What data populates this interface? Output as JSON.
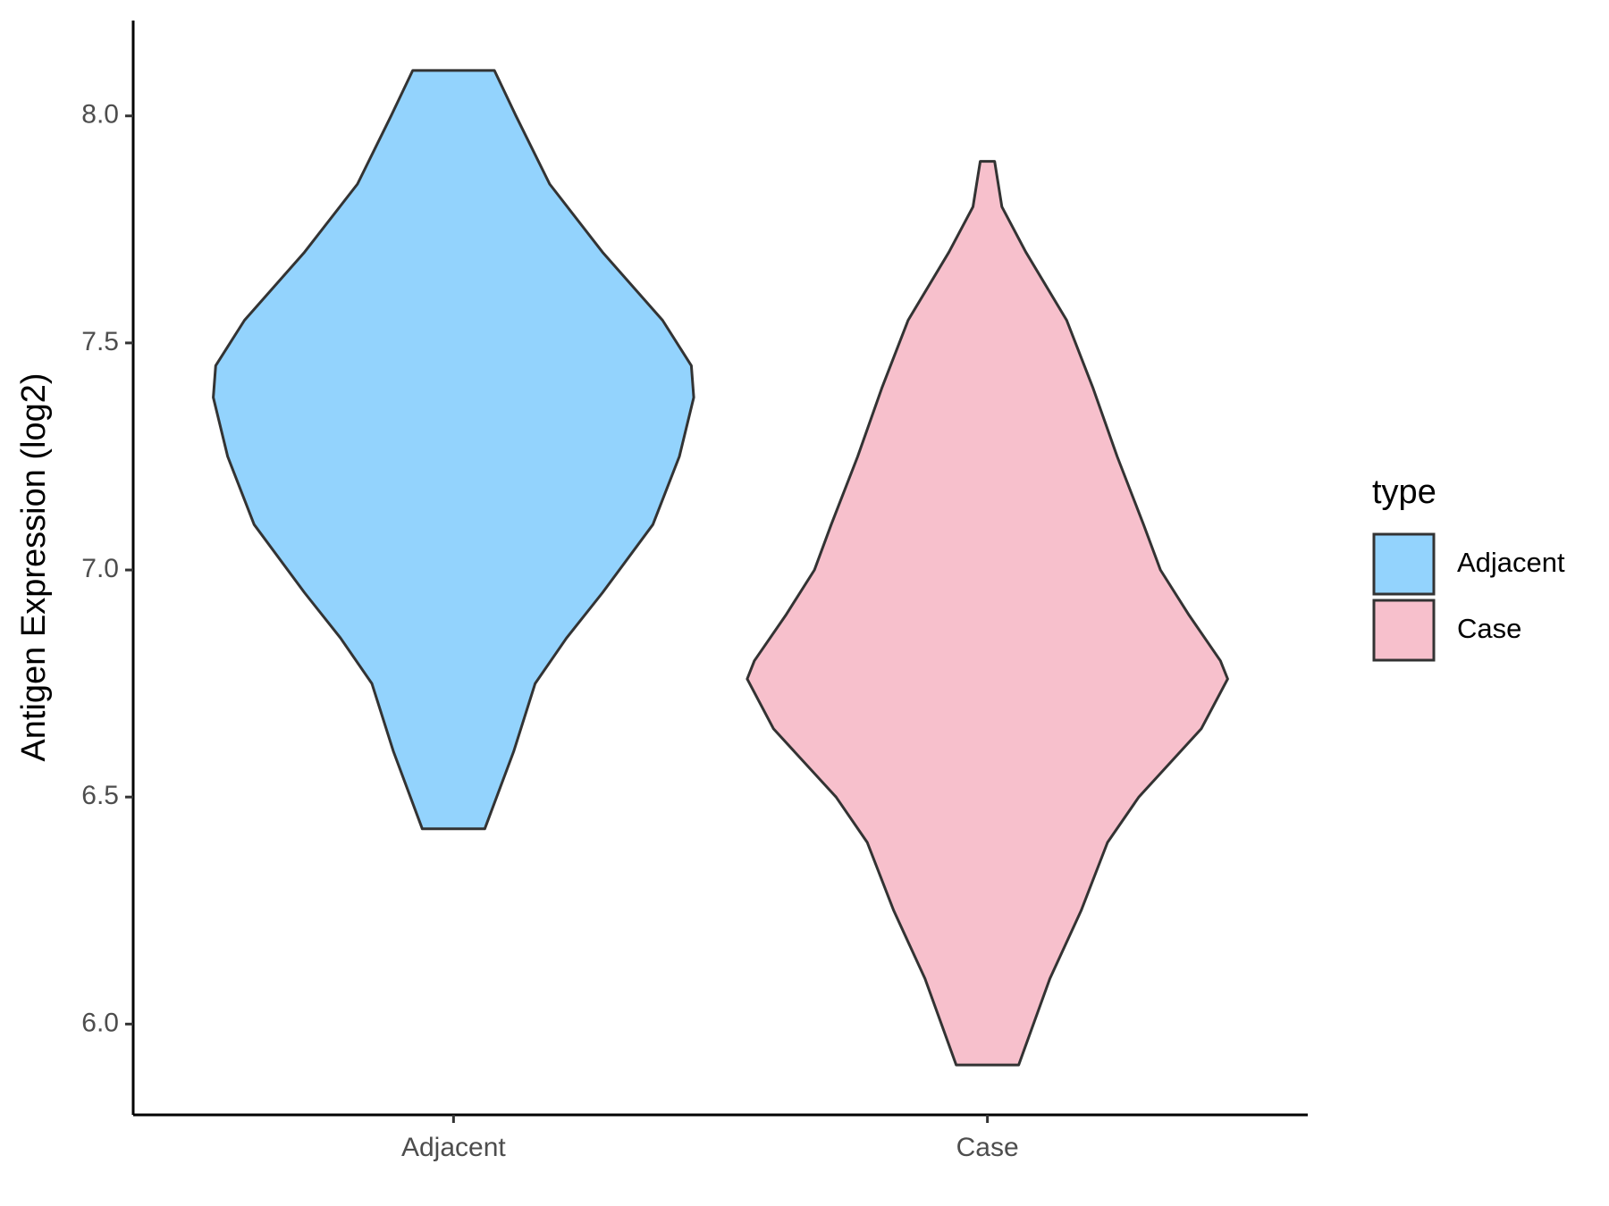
{
  "chart_data": {
    "type": "violin",
    "y_label": "Antigen Expression (log2)",
    "categories": [
      "Adjacent",
      "Case"
    ],
    "legend_title": "type",
    "legend_position": "right",
    "ylim": [
      5.8,
      8.21
    ],
    "yticks": [
      {
        "value": 6,
        "label": "6.0"
      },
      6.5,
      {
        "value": 7,
        "label": "7.0"
      },
      7.5,
      {
        "value": 8,
        "label": "8.0"
      }
    ],
    "series": [
      {
        "name": "Adjacent",
        "color": "#93d3fd",
        "y": [
          8.1,
          8.0,
          7.85,
          7.7,
          7.55,
          7.45,
          7.38,
          7.25,
          7.1,
          6.95,
          6.85,
          6.75,
          6.6,
          6.43
        ],
        "width": [
          0.17,
          0.26,
          0.4,
          0.62,
          0.87,
          0.99,
          1,
          0.94,
          0.83,
          0.62,
          0.47,
          0.34,
          0.25,
          0.13
        ]
      },
      {
        "name": "Case",
        "color": "#f7c0cc",
        "y": [
          7.9,
          7.8,
          7.7,
          7.55,
          7.4,
          7.25,
          7.1,
          7.0,
          6.9,
          6.8,
          6.76,
          6.65,
          6.5,
          6.4,
          6.25,
          6.1,
          5.91
        ],
        "width": [
          0.03,
          0.06,
          0.16,
          0.33,
          0.44,
          0.54,
          0.65,
          0.72,
          0.84,
          0.97,
          1,
          0.89,
          0.63,
          0.5,
          0.39,
          0.26,
          0.13
        ]
      }
    ]
  }
}
